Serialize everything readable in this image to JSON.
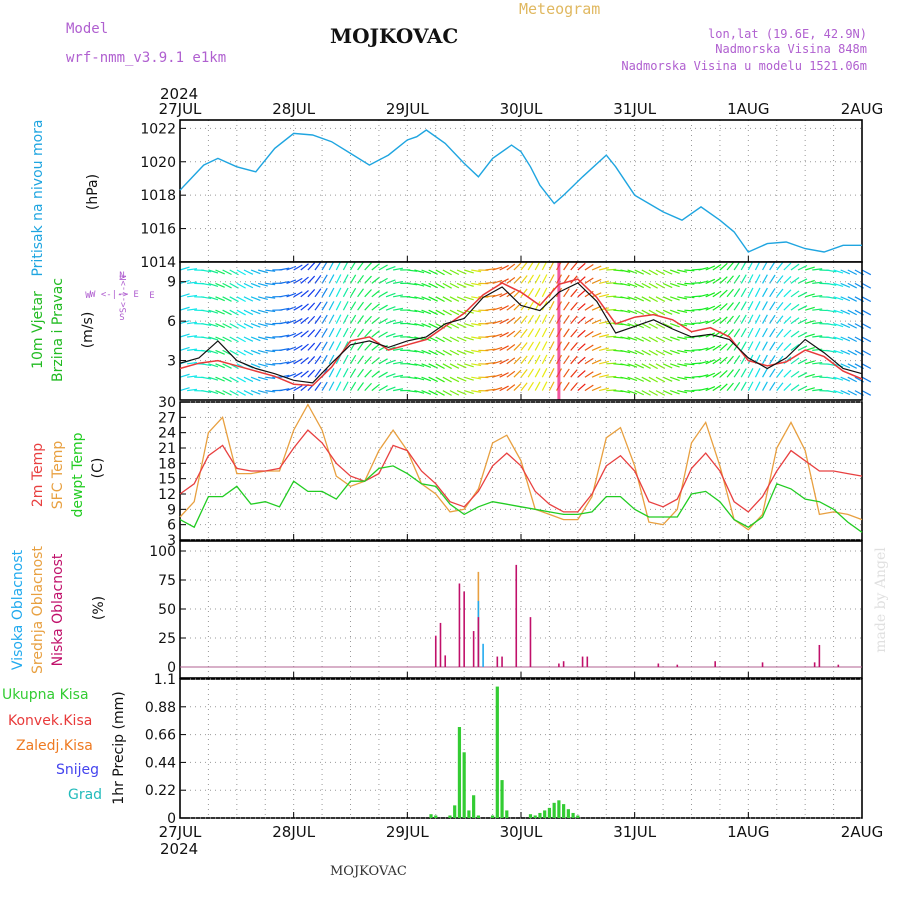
{
  "header": {
    "model_label": "Model",
    "model_name": "wrf-nmm_v3.9.1  e1km",
    "station": "MOJKOVAC",
    "product": "Meteogram",
    "lonlat": "lon,lat (19.6E, 42.9N)",
    "elevation": "Nadmorska Visina 848m",
    "model_elevation": "Nadmorska Visina u modelu 1521.06m",
    "year": "2024"
  },
  "footer": {
    "station": "MOJKOVAC",
    "credit": "made by Angel"
  },
  "time_axis": {
    "labels": [
      "27JUL",
      "28JUL",
      "29JUL",
      "30JUL",
      "31JUL",
      "1AUG",
      "2AUG"
    ],
    "start": "2024-07-27 00:00",
    "end": "2024-08-02 00:00"
  },
  "colors": {
    "pressure": "#1fa5e0",
    "wind_label": "#22bb22",
    "wind_speed_line": "#111111",
    "gust_line": "#e83a3a",
    "temp2m": "#e84040",
    "sfc_temp": "#e8a040",
    "dewpoint": "#22cc22",
    "cloud_high": "#22aaee",
    "cloud_mid": "#e8a040",
    "cloud_low": "#c0106a",
    "precip_total": "#33cc33",
    "precip_conv": "#e83a3a",
    "precip_frz": "#ee7a22",
    "precip_snow": "#4444ee",
    "precip_hail": "#22bbbb",
    "compass": "#b060d0"
  },
  "panels": {
    "pressure": {
      "ylabel": "Pritisak na nivou mora",
      "unit": "(hPa)",
      "ticks": [
        "1014",
        "1016",
        "1018",
        "1020",
        "1022"
      ]
    },
    "wind": {
      "ylabel1": "10m Vjetar",
      "ylabel2": "Brzina i Pravac",
      "unit": "(m/s)",
      "ticks": [
        "3",
        "6",
        "9"
      ],
      "compass_n": "N",
      "compass_w": "W",
      "compass_e": "E",
      "compass_s": "S",
      "compass_row": "W <-|-> E",
      "compass_col": "S<-|->N"
    },
    "temperature": {
      "label_2m": "2m Temp",
      "label_sfc": "SFC Temp",
      "label_dew": "dewpt Temp",
      "unit": "(C)",
      "ticks": [
        "3",
        "6",
        "9",
        "12",
        "15",
        "18",
        "21",
        "24",
        "27",
        "30"
      ]
    },
    "cloud": {
      "label_high": "Visoka Oblacnost",
      "label_mid": "Srednja Oblacnost",
      "label_low": "Niska Oblacnost",
      "unit": "(%)",
      "ticks": [
        "0",
        "25",
        "50",
        "75",
        "100"
      ]
    },
    "precip": {
      "label_total": "Ukupna Kisa",
      "label_conv": "Konvek.Kisa",
      "label_frz": "Zaledj.Kisa",
      "label_snow": "Snijeg",
      "label_hail": "Grad",
      "unit": "1hr Precip (mm)",
      "ticks": [
        "0",
        "0.22",
        "0.44",
        "0.66",
        "0.88",
        "1.1"
      ]
    }
  },
  "chart_data": [
    {
      "type": "line",
      "title": "Pritisak na nivou mora",
      "ylabel": "(hPa)",
      "ylim": [
        1014,
        1022.5
      ],
      "x_hours": [
        0,
        2,
        5,
        8,
        12,
        16,
        20,
        24,
        28,
        32,
        36,
        40,
        44,
        48,
        50,
        52,
        56,
        60,
        63,
        66,
        70,
        72,
        74,
        76,
        79,
        81,
        85,
        90,
        92,
        96,
        102,
        106,
        110,
        114,
        117,
        120,
        124,
        128,
        132,
        136,
        140,
        144
      ],
      "series": [
        {
          "name": "Pritisak",
          "values": [
            1018.3,
            1018.9,
            1019.8,
            1020.2,
            1019.7,
            1019.4,
            1020.8,
            1021.7,
            1021.6,
            1021.2,
            1020.5,
            1019.8,
            1020.4,
            1021.3,
            1021.5,
            1021.9,
            1021.1,
            1019.9,
            1019.1,
            1020.2,
            1021.0,
            1020.6,
            1019.7,
            1018.6,
            1017.5,
            1018.0,
            1019.1,
            1020.4,
            1019.7,
            1018.0,
            1017.0,
            1016.5,
            1017.3,
            1016.5,
            1015.8,
            1014.6,
            1015.1,
            1015.2,
            1014.8,
            1014.6,
            1015.0,
            1015.0
          ]
        }
      ]
    },
    {
      "type": "line",
      "title": "10m Vjetar Brzina i Pravac",
      "ylabel": "(m/s)",
      "ylim": [
        0,
        10.5
      ],
      "x_hours": [
        0,
        4,
        8,
        12,
        16,
        20,
        24,
        28,
        32,
        36,
        40,
        44,
        48,
        52,
        56,
        60,
        64,
        68,
        72,
        76,
        80,
        84,
        88,
        92,
        96,
        100,
        104,
        108,
        112,
        116,
        120,
        124,
        128,
        132,
        136,
        140,
        144
      ],
      "series": [
        {
          "name": "Brzina",
          "values": [
            2.8,
            3.2,
            4.5,
            3.0,
            2.4,
            2.0,
            1.5,
            1.3,
            2.8,
            4.2,
            4.5,
            4.0,
            4.5,
            4.8,
            5.8,
            6.2,
            7.8,
            8.6,
            7.2,
            6.8,
            8.2,
            8.9,
            7.5,
            5.1,
            5.6,
            6.1,
            5.4,
            4.8,
            5.0,
            4.6,
            3.2,
            2.4,
            3.2,
            4.6,
            3.6,
            2.4,
            2.0
          ]
        },
        {
          "name": "Udar",
          "values": [
            2.4,
            2.8,
            3.0,
            2.6,
            2.2,
            1.8,
            1.2,
            1.1,
            2.5,
            4.5,
            4.8,
            3.8,
            4.2,
            4.6,
            5.6,
            6.6,
            8.0,
            8.9,
            8.2,
            7.2,
            8.8,
            9.2,
            7.8,
            5.8,
            6.3,
            6.5,
            6.1,
            5.2,
            5.5,
            4.8,
            3.0,
            2.6,
            2.9,
            3.8,
            3.3,
            2.2,
            1.6
          ]
        }
      ]
    },
    {
      "type": "line",
      "title": "Temperatura",
      "ylabel": "(C)",
      "ylim": [
        3,
        30
      ],
      "x_hours": [
        0,
        3,
        6,
        9,
        12,
        15,
        18,
        21,
        24,
        27,
        30,
        33,
        36,
        39,
        42,
        45,
        48,
        51,
        54,
        57,
        60,
        63,
        66,
        69,
        72,
        75,
        78,
        81,
        84,
        87,
        90,
        93,
        96,
        99,
        102,
        105,
        108,
        111,
        114,
        117,
        120,
        123,
        126,
        129,
        132,
        135,
        138,
        141,
        144
      ],
      "series": [
        {
          "name": "2m Temp",
          "values": [
            12,
            14,
            19.5,
            21.5,
            17,
            16.5,
            16.5,
            17,
            21,
            24.5,
            22,
            18,
            15.5,
            14.5,
            16,
            21.5,
            20.5,
            16.5,
            14,
            10.5,
            9.5,
            12.5,
            17.5,
            20,
            17.5,
            12.5,
            10,
            8.5,
            8.5,
            12,
            17.5,
            19.5,
            16.5,
            10.5,
            9.5,
            11,
            17,
            20,
            16.5,
            10.5,
            8.5,
            11.5,
            16.5,
            20.5,
            18.5,
            16.5,
            16.5,
            16,
            15.5
          ]
        },
        {
          "name": "SFC Temp",
          "values": [
            7.5,
            10.5,
            24,
            27,
            16,
            16,
            16.5,
            16.5,
            24.5,
            29.5,
            24.5,
            15.5,
            13.5,
            14.5,
            20.5,
            24.5,
            20.5,
            14,
            12,
            8.5,
            9,
            13,
            22,
            23.5,
            18.5,
            9,
            8,
            7,
            7,
            11.5,
            23,
            25,
            17.5,
            6.5,
            6,
            9,
            22,
            26,
            17.5,
            7,
            5,
            8,
            21,
            26,
            20.5,
            8,
            8.5,
            8,
            7
          ]
        },
        {
          "name": "dewpt Temp",
          "values": [
            7,
            5.5,
            11.5,
            11.5,
            13.5,
            10,
            10.5,
            9.5,
            14.5,
            12.5,
            12.5,
            11,
            14.5,
            14.5,
            17,
            17.5,
            16,
            14,
            13.5,
            10,
            8,
            9.5,
            10.5,
            10,
            9.5,
            9,
            8.5,
            8,
            8,
            8.5,
            11.5,
            11.5,
            9,
            7.5,
            7.5,
            7.5,
            12,
            12.5,
            10.5,
            7,
            5.5,
            7.5,
            14,
            13,
            11,
            10.5,
            9,
            6.5,
            4.5
          ]
        }
      ]
    },
    {
      "type": "bar",
      "title": "Oblacnost",
      "ylabel": "(%)",
      "ylim": [
        0,
        100
      ],
      "series": [
        {
          "name": "Visoka Oblacnost",
          "x_hours": [
            63,
            64
          ],
          "values": [
            57,
            20
          ]
        },
        {
          "name": "Srednja Oblacnost",
          "x_hours": [
            63
          ],
          "values": [
            82
          ]
        },
        {
          "name": "Niska Oblacnost",
          "x_hours": [
            54,
            55,
            56,
            59,
            60,
            62,
            63,
            67,
            68,
            71,
            74,
            80,
            81,
            85,
            86,
            101,
            105,
            113,
            123,
            134,
            135,
            139
          ],
          "values": [
            27,
            38,
            10,
            72,
            65,
            31,
            43,
            9,
            9,
            88,
            43,
            3,
            5,
            9,
            9,
            3,
            2,
            5,
            4,
            4,
            19,
            2
          ]
        }
      ]
    },
    {
      "type": "bar",
      "title": "1hr Precip",
      "ylabel": "(mm)",
      "ylim": [
        0,
        1.1
      ],
      "series": [
        {
          "name": "Ukupna Kisa",
          "x_hours": [
            53,
            54,
            57,
            58,
            59,
            60,
            61,
            62,
            63,
            66,
            67,
            68,
            69,
            74,
            75,
            76,
            77,
            78,
            79,
            80,
            81,
            82,
            83,
            84
          ],
          "values": [
            0.03,
            0.02,
            0.02,
            0.1,
            0.72,
            0.52,
            0.06,
            0.18,
            0.02,
            0.02,
            1.04,
            0.3,
            0.06,
            0.03,
            0.02,
            0.04,
            0.06,
            0.08,
            0.12,
            0.14,
            0.11,
            0.07,
            0.04,
            0.02
          ]
        }
      ]
    }
  ]
}
